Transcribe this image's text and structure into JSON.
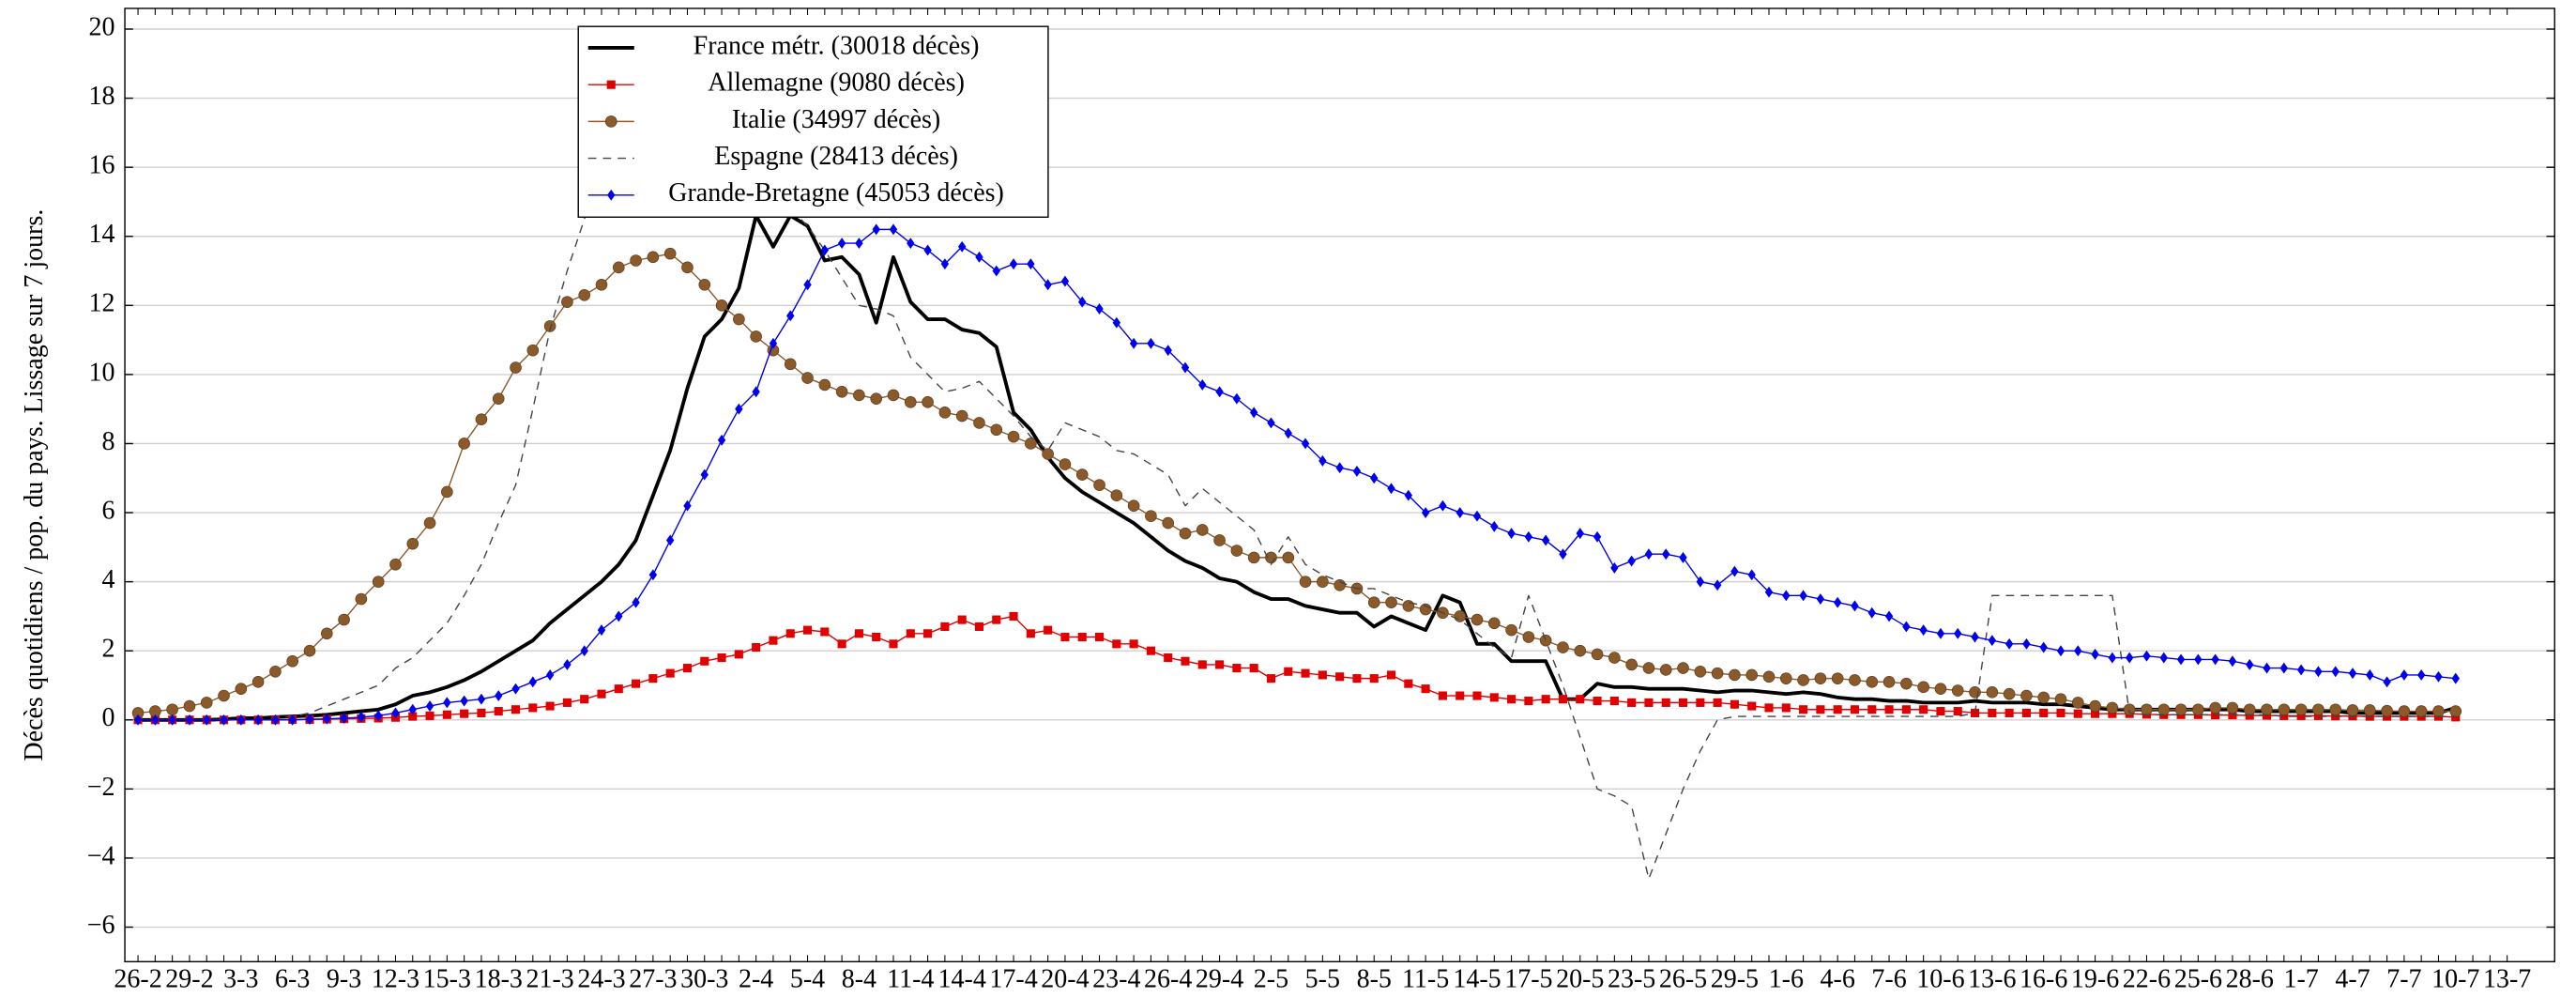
{
  "chart_data": {
    "type": "line",
    "y_label": "Décès quotidiens / pop. du pays. Lissage sur 7 jours.",
    "categories": [
      "26-2",
      null,
      null,
      "29-2",
      null,
      null,
      "3-3",
      null,
      null,
      "6-3",
      null,
      null,
      "9-3",
      null,
      null,
      "12-3",
      null,
      null,
      "15-3",
      null,
      null,
      "18-3",
      null,
      null,
      "21-3",
      null,
      null,
      "24-3",
      null,
      null,
      "27-3",
      null,
      null,
      "30-3",
      null,
      null,
      "2-4",
      null,
      null,
      "5-4",
      null,
      null,
      "8-4",
      null,
      null,
      "11-4",
      null,
      null,
      "14-4",
      null,
      null,
      "17-4",
      null,
      null,
      "20-4",
      null,
      null,
      "23-4",
      null,
      null,
      "26-4",
      null,
      null,
      "29-4",
      null,
      null,
      "2-5",
      null,
      null,
      "5-5",
      null,
      null,
      "8-5",
      null,
      null,
      "11-5",
      null,
      null,
      "14-5",
      null,
      null,
      "17-5",
      null,
      null,
      "20-5",
      null,
      null,
      "23-5",
      null,
      null,
      "26-5",
      null,
      null,
      "29-5",
      null,
      null,
      "1-6",
      null,
      null,
      "4-6",
      null,
      null,
      "7-6",
      null,
      null,
      "10-6",
      null,
      null,
      "13-6",
      null,
      null,
      "16-6",
      null,
      null,
      "19-6",
      null,
      null,
      "22-6",
      null,
      null,
      "25-6",
      null,
      null,
      "28-6",
      null,
      null,
      "1-7",
      null,
      null,
      "4-7",
      null,
      null,
      "7-7",
      null,
      null,
      "10-7",
      null,
      null,
      "13-7"
    ],
    "series": [
      {
        "name": "France métr. (30018 décès)",
        "color": "#000000",
        "line_style": "solid",
        "marker": "none",
        "line_width": 2.2,
        "values": [
          0,
          0,
          0,
          0,
          0,
          0.02,
          0.05,
          0.05,
          0.08,
          0.1,
          0.12,
          0.15,
          0.2,
          0.25,
          0.3,
          0.45,
          0.7,
          0.8,
          0.95,
          1.15,
          1.4,
          1.7,
          2.0,
          2.3,
          2.8,
          3.2,
          3.6,
          4.0,
          4.5,
          5.2,
          6.5,
          7.8,
          9.6,
          11.1,
          11.6,
          12.5,
          14.6,
          13.7,
          14.6,
          14.3,
          13.3,
          13.4,
          12.9,
          11.5,
          13.4,
          12.1,
          11.6,
          11.6,
          11.3,
          11.2,
          10.8,
          8.9,
          8.4,
          7.6,
          7.0,
          6.6,
          6.3,
          6.0,
          5.7,
          5.3,
          4.9,
          4.6,
          4.4,
          4.1,
          4.0,
          3.7,
          3.5,
          3.5,
          3.3,
          3.2,
          3.1,
          3.1,
          2.7,
          3.0,
          2.8,
          2.6,
          3.6,
          3.4,
          2.2,
          2.2,
          1.7,
          1.7,
          1.7,
          0.6,
          0.6,
          1.05,
          0.95,
          0.95,
          0.9,
          0.9,
          0.9,
          0.85,
          0.8,
          0.85,
          0.85,
          0.8,
          0.75,
          0.8,
          0.75,
          0.65,
          0.6,
          0.6,
          0.55,
          0.55,
          0.5,
          0.5,
          0.5,
          0.55,
          0.5,
          0.5,
          0.5,
          0.45,
          0.45,
          0.4,
          0.35,
          0.3,
          0.3,
          0.3,
          0.3,
          0.3,
          0.3,
          0.3,
          0.3,
          0.25,
          0.25,
          0.25,
          0.25,
          0.25,
          0.25,
          0.2,
          0.2,
          0.2,
          0.2,
          0.2,
          0.2,
          0.35,
          null,
          null,
          null
        ]
      },
      {
        "name": "Allemagne (9080 décès)",
        "color": "#e00000",
        "line_style": "solid",
        "marker": "square",
        "line_width": 0.8,
        "values": [
          0,
          0,
          0,
          0,
          0,
          0,
          0,
          0,
          0,
          0.01,
          0.01,
          0.02,
          0.03,
          0.04,
          0.05,
          0.07,
          0.1,
          0.12,
          0.15,
          0.18,
          0.2,
          0.25,
          0.3,
          0.35,
          0.4,
          0.5,
          0.6,
          0.75,
          0.9,
          1.05,
          1.2,
          1.35,
          1.5,
          1.7,
          1.8,
          1.9,
          2.1,
          2.3,
          2.5,
          2.6,
          2.55,
          2.2,
          2.5,
          2.4,
          2.2,
          2.5,
          2.5,
          2.7,
          2.9,
          2.7,
          2.9,
          3.0,
          2.5,
          2.6,
          2.4,
          2.4,
          2.4,
          2.2,
          2.2,
          2.0,
          1.8,
          1.7,
          1.6,
          1.6,
          1.5,
          1.5,
          1.2,
          1.4,
          1.35,
          1.3,
          1.25,
          1.2,
          1.2,
          1.3,
          1.05,
          0.9,
          0.7,
          0.7,
          0.7,
          0.65,
          0.6,
          0.55,
          0.6,
          0.6,
          0.6,
          0.55,
          0.55,
          0.5,
          0.5,
          0.5,
          0.5,
          0.5,
          0.5,
          0.45,
          0.4,
          0.35,
          0.35,
          0.3,
          0.3,
          0.3,
          0.3,
          0.3,
          0.3,
          0.3,
          0.3,
          0.25,
          0.25,
          0.2,
          0.2,
          0.2,
          0.2,
          0.2,
          0.2,
          0.18,
          0.18,
          0.18,
          0.18,
          0.16,
          0.15,
          0.15,
          0.15,
          0.14,
          0.14,
          0.13,
          0.13,
          0.12,
          0.12,
          0.12,
          0.11,
          0.11,
          0.1,
          0.1,
          0.1,
          0.1,
          0.1,
          0.08,
          null,
          null,
          null
        ]
      },
      {
        "name": "Italie (34997 décès)",
        "color": "#8b5a2b",
        "line_style": "solid",
        "marker": "circle",
        "line_width": 0.8,
        "values": [
          0.2,
          0.25,
          0.3,
          0.4,
          0.5,
          0.7,
          0.9,
          1.1,
          1.4,
          1.7,
          2.0,
          2.5,
          2.9,
          3.5,
          4.0,
          4.5,
          5.1,
          5.7,
          6.6,
          8.0,
          8.7,
          9.3,
          10.2,
          10.7,
          11.4,
          12.1,
          12.3,
          12.6,
          13.1,
          13.3,
          13.4,
          13.5,
          13.1,
          12.6,
          12.0,
          11.6,
          11.1,
          10.7,
          10.3,
          9.9,
          9.7,
          9.5,
          9.4,
          9.3,
          9.4,
          9.2,
          9.2,
          8.9,
          8.8,
          8.6,
          8.4,
          8.2,
          8.0,
          7.7,
          7.4,
          7.1,
          6.8,
          6.5,
          6.2,
          5.9,
          5.7,
          5.4,
          5.5,
          5.2,
          4.9,
          4.7,
          4.7,
          4.7,
          4.0,
          4.0,
          3.9,
          3.8,
          3.4,
          3.4,
          3.3,
          3.2,
          3.1,
          3.0,
          2.9,
          2.8,
          2.6,
          2.4,
          2.3,
          2.1,
          2.0,
          1.9,
          1.8,
          1.6,
          1.5,
          1.45,
          1.5,
          1.4,
          1.35,
          1.3,
          1.3,
          1.25,
          1.2,
          1.15,
          1.2,
          1.2,
          1.15,
          1.1,
          1.1,
          1.05,
          0.95,
          0.9,
          0.85,
          0.8,
          0.8,
          0.75,
          0.7,
          0.65,
          0.6,
          0.5,
          0.4,
          0.35,
          0.3,
          0.3,
          0.3,
          0.3,
          0.3,
          0.35,
          0.35,
          0.3,
          0.3,
          0.3,
          0.3,
          0.3,
          0.3,
          0.28,
          0.28,
          0.26,
          0.25,
          0.25,
          0.25,
          0.25,
          null,
          null,
          null
        ]
      },
      {
        "name": "Espagne (28413 décès)",
        "color": "#444444",
        "line_style": "dashed",
        "marker": "none",
        "line_width": 0.8,
        "values": [
          0,
          0,
          0,
          0,
          0,
          0,
          0,
          0,
          0.05,
          0.1,
          0.2,
          0.4,
          0.6,
          0.8,
          1.0,
          1.5,
          1.8,
          2.3,
          2.8,
          3.6,
          4.5,
          5.7,
          6.8,
          9.0,
          11.3,
          13.0,
          14.5,
          16.0,
          17.0,
          18.0,
          18.3,
          18.5,
          18.5,
          18.2,
          17.5,
          17.0,
          16.0,
          15.2,
          14.8,
          14.3,
          13.6,
          12.8,
          12.0,
          11.9,
          11.7,
          10.5,
          10.0,
          9.5,
          9.6,
          9.8,
          9.3,
          8.8,
          8.2,
          7.8,
          8.6,
          8.4,
          8.2,
          7.8,
          7.7,
          7.4,
          7.1,
          6.2,
          6.7,
          6.3,
          5.9,
          5.5,
          4.5,
          5.3,
          4.5,
          4.2,
          4.0,
          3.8,
          3.8,
          3.6,
          3.4,
          3.3,
          3.1,
          2.9,
          2.5,
          2.1,
          1.8,
          3.6,
          2.3,
          1.0,
          -0.5,
          -2.0,
          -2.2,
          -2.5,
          -4.6,
          -3.3,
          -2.0,
          -0.9,
          0,
          0.1,
          0.1,
          0.1,
          0.1,
          0.1,
          0.1,
          0.1,
          0.1,
          0.1,
          0.1,
          0.1,
          0.1,
          0.1,
          0.1,
          0.2,
          3.6,
          3.6,
          3.6,
          3.6,
          3.6,
          3.6,
          3.6,
          3.6,
          0.2,
          0.15,
          0.15,
          0.15,
          0.15,
          0.15,
          0.15,
          0.15,
          0.15,
          0.1,
          0.1,
          0.1,
          0.1,
          0.1,
          0.1,
          0.1,
          0.1,
          0.1,
          0.1,
          0.1,
          null,
          null,
          null
        ]
      },
      {
        "name": "Grande-Bretagne (45053 décès)",
        "color": "#0000ee",
        "line_style": "solid",
        "marker": "diamond",
        "line_width": 0.8,
        "values": [
          0,
          0,
          0,
          0,
          0,
          0,
          0,
          0,
          0,
          0,
          0.02,
          0.03,
          0.05,
          0.08,
          0.12,
          0.2,
          0.3,
          0.4,
          0.5,
          0.55,
          0.6,
          0.7,
          0.9,
          1.1,
          1.3,
          1.6,
          2.0,
          2.6,
          3.0,
          3.4,
          4.2,
          5.2,
          6.2,
          7.1,
          8.1,
          9.0,
          9.5,
          10.9,
          11.7,
          12.6,
          13.6,
          13.8,
          13.8,
          14.2,
          14.2,
          13.8,
          13.6,
          13.2,
          13.7,
          13.4,
          13.0,
          13.2,
          13.2,
          12.6,
          12.7,
          12.1,
          11.9,
          11.5,
          10.9,
          10.9,
          10.7,
          10.2,
          9.7,
          9.5,
          9.3,
          8.9,
          8.6,
          8.3,
          8.0,
          7.5,
          7.3,
          7.2,
          7.0,
          6.7,
          6.5,
          6.0,
          6.2,
          6.0,
          5.9,
          5.6,
          5.4,
          5.3,
          5.2,
          4.8,
          5.4,
          5.3,
          4.4,
          4.6,
          4.8,
          4.8,
          4.7,
          4.0,
          3.9,
          4.3,
          4.2,
          3.7,
          3.6,
          3.6,
          3.5,
          3.4,
          3.3,
          3.1,
          3.0,
          2.7,
          2.6,
          2.5,
          2.5,
          2.4,
          2.3,
          2.2,
          2.2,
          2.1,
          2.0,
          2.0,
          1.9,
          1.8,
          1.8,
          1.85,
          1.8,
          1.75,
          1.75,
          1.75,
          1.7,
          1.6,
          1.5,
          1.5,
          1.45,
          1.4,
          1.4,
          1.35,
          1.3,
          1.1,
          1.3,
          1.3,
          1.25,
          1.2,
          null,
          null,
          null
        ]
      }
    ],
    "ylim": [
      -7,
      20.6
    ],
    "yticks": [
      {
        "value": -6,
        "label": "−6"
      },
      {
        "value": -4,
        "label": "−4"
      },
      {
        "value": -2,
        "label": "−2"
      },
      0,
      2,
      4,
      6,
      8,
      10,
      12,
      14,
      16,
      18,
      20
    ],
    "grid": true,
    "legend_position": "top-left"
  }
}
